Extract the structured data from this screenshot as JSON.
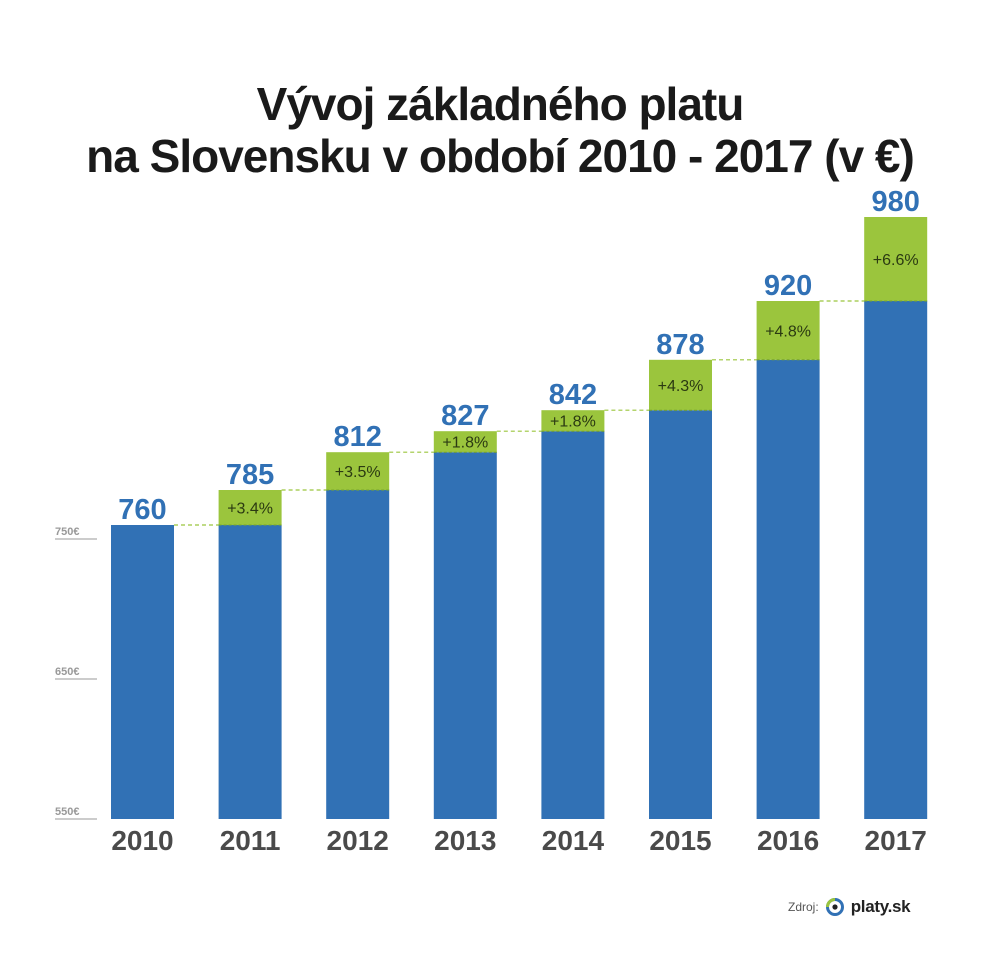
{
  "title": {
    "line1": "Vývoj základného platu",
    "line2": "na Slovensku  v období 2010 - 2017 (v €)"
  },
  "colors": {
    "bar": "#3171b5",
    "increase": "#9bc53d",
    "value_label": "#3171b5",
    "year_label": "#4a4a4a",
    "connector": "#9bc53d",
    "axis_tick": "#999999"
  },
  "chart_data": {
    "type": "bar",
    "categories": [
      "2010",
      "2011",
      "2012",
      "2013",
      "2014",
      "2015",
      "2016",
      "2017"
    ],
    "values": [
      760,
      785,
      812,
      827,
      842,
      878,
      920,
      980
    ],
    "changes": [
      "",
      "+3.4%",
      "+3.5%",
      "+1.8%",
      "+1.8%",
      "+4.3%",
      "+4.8%",
      "+6.6%"
    ],
    "title": "Vývoj základného platu na Slovensku  v období 2010 - 2017 (v €)",
    "xlabel": "",
    "ylabel": "",
    "y_ticks": [
      {
        "value": 550,
        "label": "550€"
      },
      {
        "value": 650,
        "label": "650€"
      },
      {
        "value": 750,
        "label": "750€"
      }
    ],
    "ylim": [
      550,
      980
    ],
    "grid": false,
    "legend": "none"
  },
  "source": {
    "label": "Zdroj:",
    "logo_text": "platy.sk",
    "logo_icon": "platy-logo-icon"
  }
}
